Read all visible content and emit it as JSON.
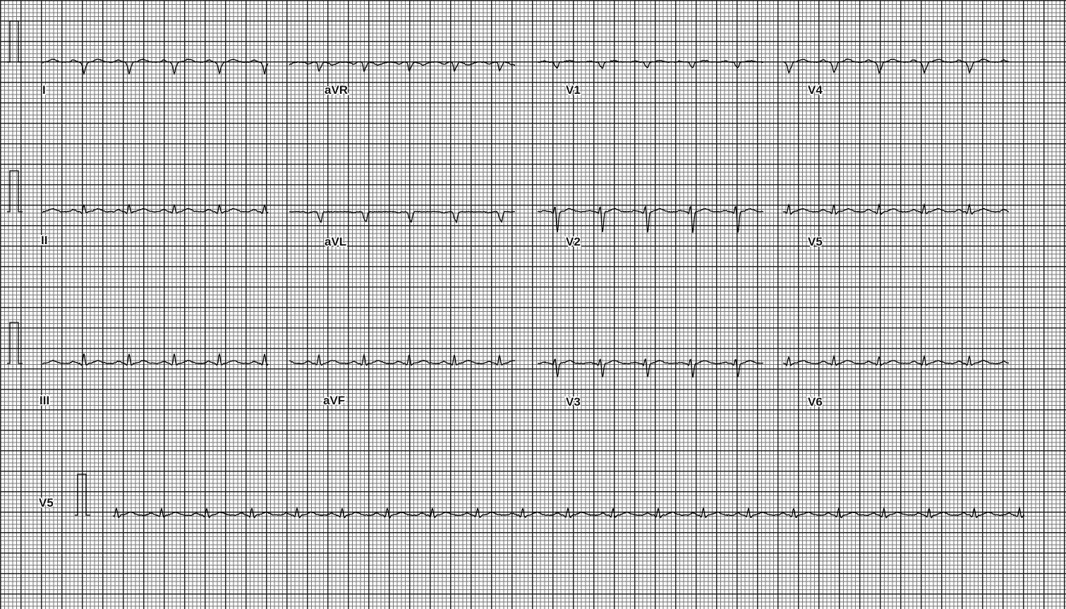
{
  "leads": [
    [
      "I",
      "aVR",
      "V1",
      "V4"
    ],
    [
      "II",
      "aVL",
      "V2",
      "V5"
    ],
    [
      "III",
      "aVF",
      "V3",
      "V6"
    ]
  ],
  "rhythm_strip": {
    "label": "V5"
  }
}
